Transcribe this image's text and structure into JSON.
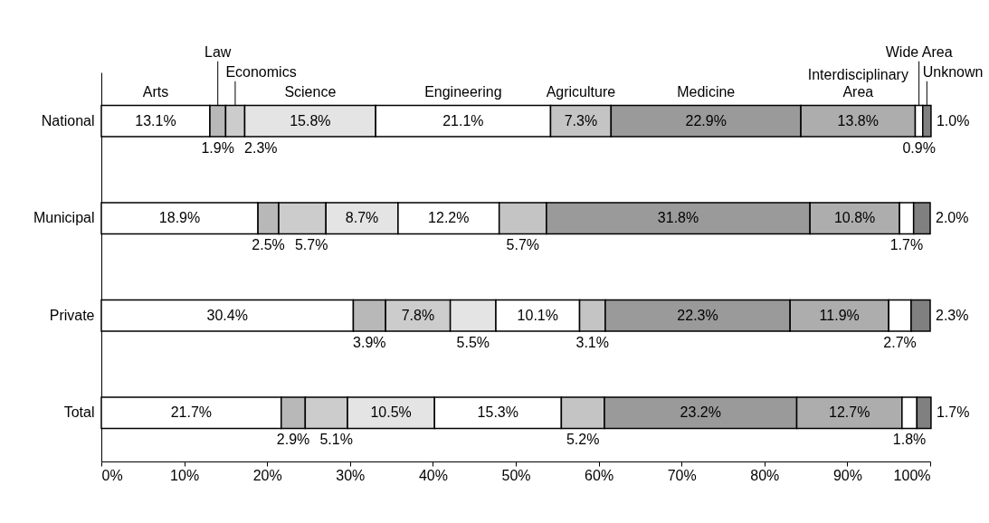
{
  "chart_data": {
    "type": "bar",
    "orientation": "horizontal",
    "stacked": true,
    "legend": false,
    "grid": false,
    "categories": [
      "National",
      "Municipal",
      "Private",
      "Total"
    ],
    "xlim": [
      0,
      100
    ],
    "xticks": [
      {
        "value": 0,
        "label": "0%"
      },
      {
        "value": 10,
        "label": "10%"
      },
      {
        "value": 20,
        "label": "20%"
      },
      {
        "value": 30,
        "label": "30%"
      },
      {
        "value": 40,
        "label": "40%"
      },
      {
        "value": 50,
        "label": "50%"
      },
      {
        "value": 60,
        "label": "60%"
      },
      {
        "value": 70,
        "label": "70%"
      },
      {
        "value": 80,
        "label": "80%"
      },
      {
        "value": 90,
        "label": "90%"
      },
      {
        "value": 100,
        "label": "100%"
      }
    ],
    "series": [
      {
        "name": "Arts",
        "color": "#ffffff",
        "values": [
          13.1,
          18.9,
          30.4,
          21.7
        ],
        "value_labels": [
          "13.1%",
          "18.9%",
          "30.4%",
          "21.7%"
        ]
      },
      {
        "name": "Law",
        "color": "#b8b8b8",
        "values": [
          1.9,
          2.5,
          3.9,
          2.9
        ],
        "value_labels": [
          "1.9%",
          "2.5%",
          "3.9%",
          "2.9%"
        ]
      },
      {
        "name": "Economics",
        "color": "#cccccc",
        "values": [
          2.3,
          5.7,
          7.8,
          5.1
        ],
        "value_labels": [
          "2.3%",
          "5.7%",
          "7.8%",
          "5.1%"
        ]
      },
      {
        "name": "Science",
        "color": "#e4e4e4",
        "values": [
          15.8,
          8.7,
          5.5,
          10.5
        ],
        "value_labels": [
          "15.8%",
          "8.7%",
          "5.5%",
          "10.5%"
        ]
      },
      {
        "name": "Engineering",
        "color": "#ffffff",
        "values": [
          21.1,
          12.2,
          10.1,
          15.3
        ],
        "value_labels": [
          "21.1%",
          "12.2%",
          "10.1%",
          "15.3%"
        ]
      },
      {
        "name": "Agriculture",
        "color": "#c4c4c4",
        "values": [
          7.3,
          5.7,
          3.1,
          5.2
        ],
        "value_labels": [
          "7.3%",
          "5.7%",
          "3.1%",
          "5.2%"
        ]
      },
      {
        "name": "Medicine",
        "color": "#9a9a9a",
        "values": [
          22.9,
          31.8,
          22.3,
          23.2
        ],
        "value_labels": [
          "22.9%",
          "31.8%",
          "22.3%",
          "23.2%"
        ]
      },
      {
        "name": "Interdisciplinary Area",
        "color": "#adadad",
        "values": [
          13.8,
          10.8,
          11.9,
          12.7
        ],
        "value_labels": [
          "13.8%",
          "10.8%",
          "11.9%",
          "12.7%"
        ]
      },
      {
        "name": "Wide Area",
        "color": "#ffffff",
        "values": [
          0.9,
          1.7,
          2.7,
          1.8
        ],
        "value_labels": [
          "0.9%",
          "1.7%",
          "2.7%",
          "1.8%"
        ]
      },
      {
        "name": "Unknown",
        "color": "#808080",
        "values": [
          1.0,
          2.0,
          2.3,
          1.7
        ],
        "value_labels": [
          "1.0%",
          "2.0%",
          "2.3%",
          "1.7%"
        ]
      }
    ]
  }
}
